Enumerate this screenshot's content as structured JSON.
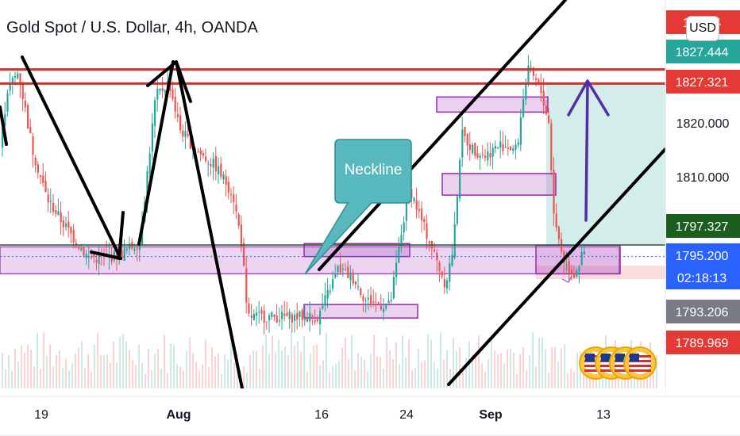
{
  "header": {
    "title": "Gold Spot / U.S. Dollar, 4h, OANDA",
    "currency": "USD"
  },
  "annotation": {
    "neckline": "Neckline"
  },
  "chart_data": {
    "type": "candlestick",
    "title": "Gold Spot / U.S. Dollar, 4h, OANDA",
    "symbol": "XAUUSD",
    "interval": "4h",
    "source": "OANDA",
    "ylim": [
      1780.5,
      1832.6
    ],
    "y_ticks": [
      "1820.000",
      "1810.000"
    ],
    "x_tick_labels": [
      "19",
      "Aug",
      "16",
      "24",
      "Sep",
      "13"
    ],
    "price_labels": [
      {
        "value": "1829.884",
        "color": "#e53935",
        "shown": "18    84"
      },
      {
        "value": "1827.444",
        "color": "#26a69a"
      },
      {
        "value": "1827.321",
        "color": "#e53935"
      },
      {
        "value": "1797.327",
        "color": "#1b5e20"
      },
      {
        "value": "1795.200",
        "color": "#2962ff",
        "countdown": "02:18:13"
      },
      {
        "value": "1793.206",
        "color": "#787b86"
      },
      {
        "value": "1789.969",
        "color": "#e53935"
      }
    ],
    "horizontal_levels": [
      1829.9,
      1827.3
    ],
    "current_price": 1795.2,
    "zones": [
      {
        "type": "support",
        "from": 1792.0,
        "to": 1797.0
      },
      {
        "type": "neckline-box",
        "from": 1795.2,
        "to": 1797.6
      },
      {
        "type": "box",
        "from": 1783.8,
        "to": 1786.3
      },
      {
        "type": "box",
        "from": 1822.0,
        "to": 1824.8
      },
      {
        "type": "box",
        "from": 1806.6,
        "to": 1810.6
      },
      {
        "type": "target",
        "from": 1797.3,
        "to": 1827.3
      }
    ],
    "candle_colors": {
      "up": "#26a69a",
      "down": "#ef5350"
    }
  }
}
